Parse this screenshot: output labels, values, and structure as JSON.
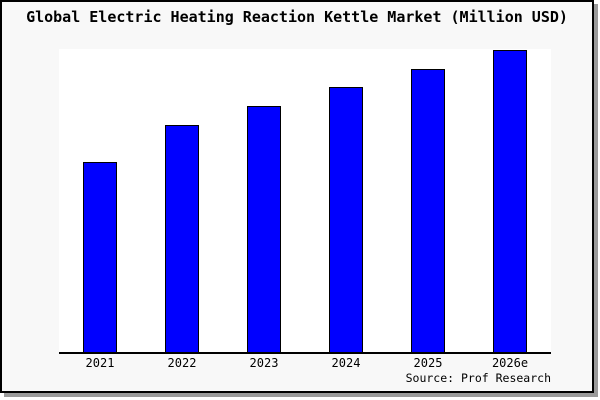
{
  "title": "Global Electric Heating Reaction Kettle Market (Million USD)",
  "source_label": "Source: Prof Research",
  "chart_data": {
    "type": "bar",
    "title": "Global Electric Heating Reaction Kettle Market (Million USD)",
    "categories": [
      "2021",
      "2022",
      "2023",
      "2024",
      "2025",
      "2026e"
    ],
    "values": [
      62.7,
      74.9,
      81.2,
      87.5,
      93.4,
      99.7
    ],
    "value_unit": "relative bar height, percent of tallest-bar scale (chart displays no y-axis labels or gridlines)",
    "xlabel": "",
    "ylabel": "",
    "ylim": [
      0,
      100
    ],
    "grid": false,
    "legend": null,
    "source": "Source: Prof Research",
    "bar_color": "#0000ff",
    "bar_border_color": "#000000"
  },
  "colors": {
    "frame_background": "#f8f8f8",
    "plot_background": "#ffffff",
    "axis": "#000000",
    "frame_border": "#000000",
    "shadow": "#9a9a9a",
    "text": "#000000"
  }
}
